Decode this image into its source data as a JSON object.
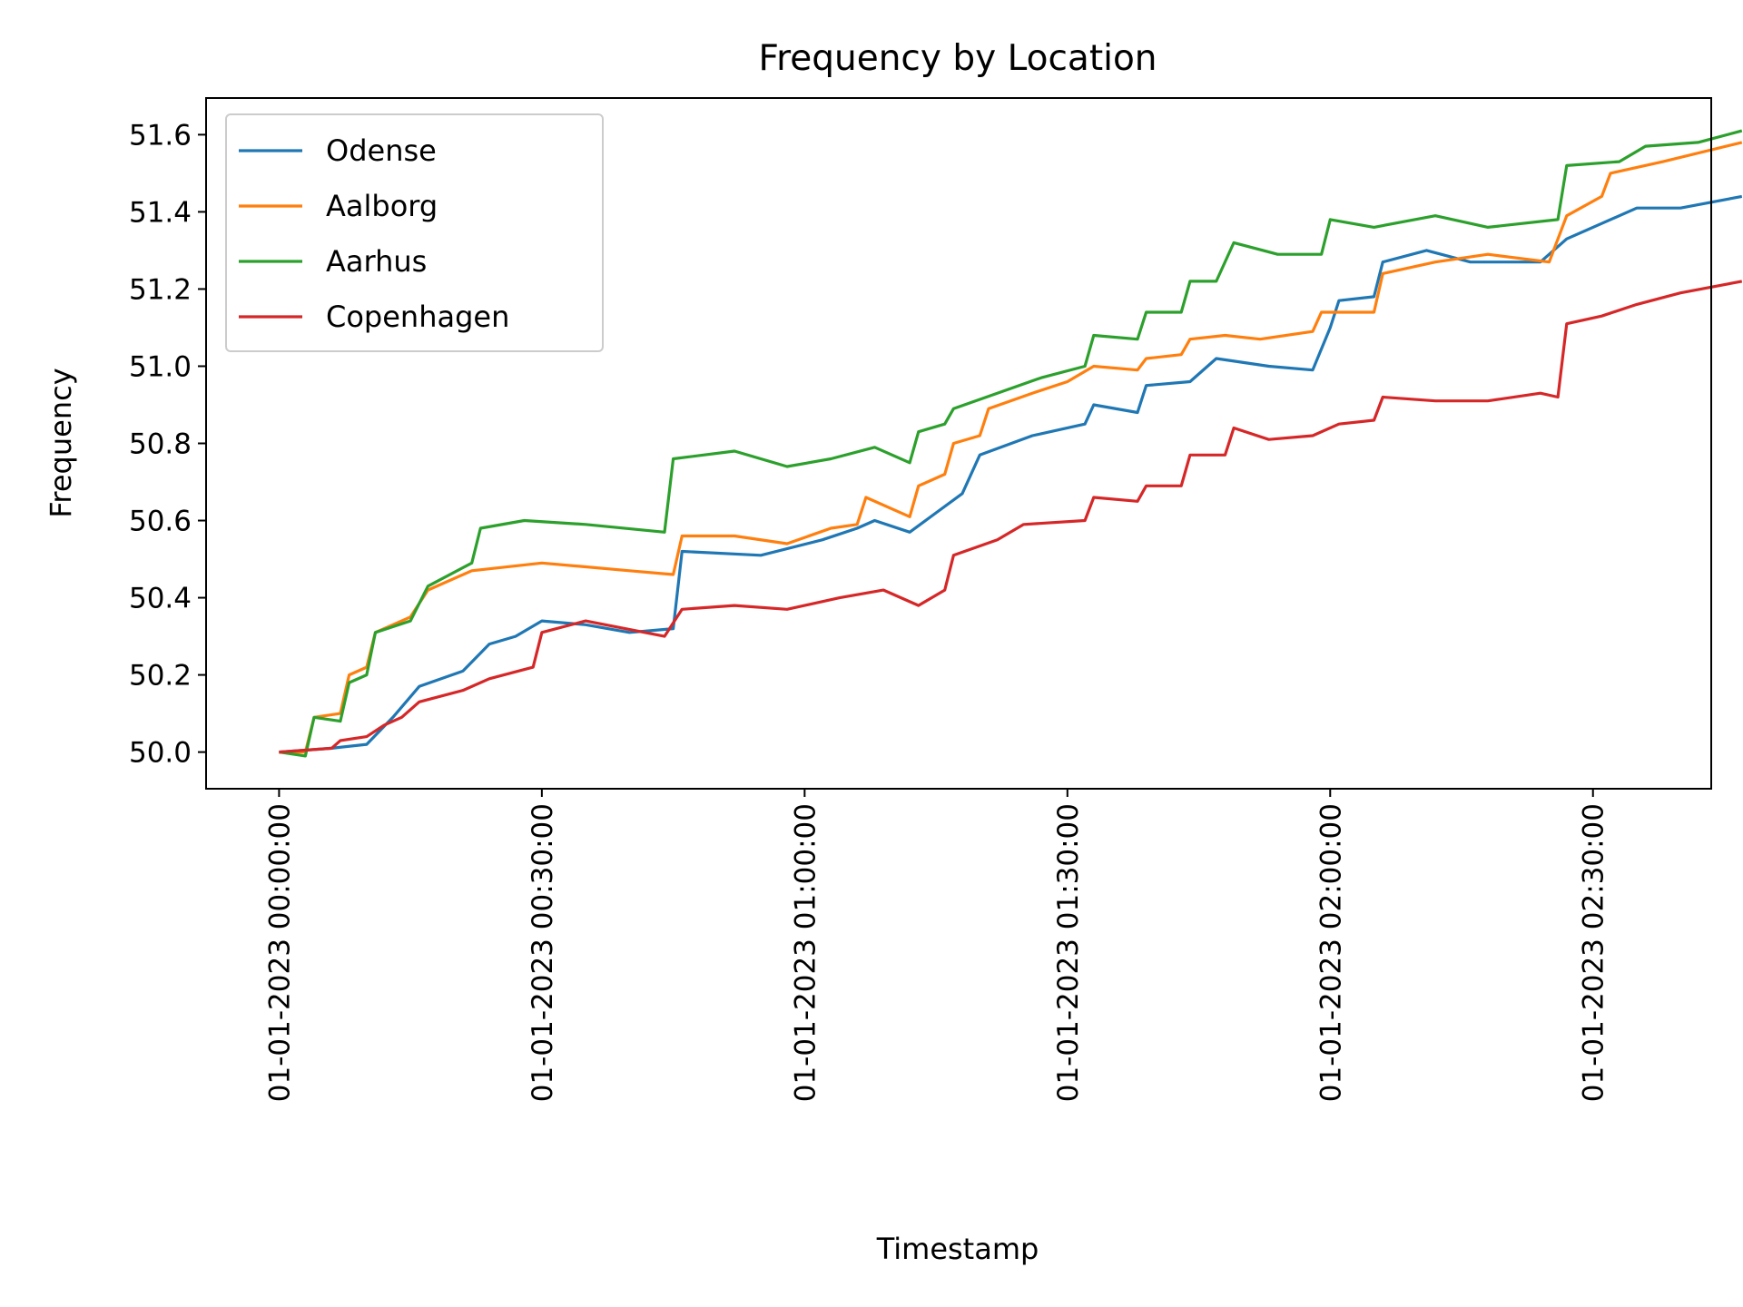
{
  "chart_data": {
    "type": "line",
    "title": "Frequency by Location",
    "xlabel": "Timestamp",
    "ylabel": "Frequency",
    "x_ticks": [
      "01-01-2023 00:00:00",
      "01-01-2023 00:30:00",
      "01-01-2023 01:00:00",
      "01-01-2023 01:30:00",
      "01-01-2023 02:00:00",
      "01-01-2023 02:30:00"
    ],
    "y_ticks": [
      "50.0",
      "50.2",
      "50.4",
      "50.6",
      "50.8",
      "51.0",
      "51.2",
      "51.4",
      "51.6"
    ],
    "xlim": [
      "01-01-2023 23:51:40",
      "01-01-2023 02:43:30"
    ],
    "ylim": [
      49.905,
      51.695
    ],
    "grid": false,
    "legend_position": "upper left",
    "series": [
      {
        "name": "Odense",
        "color": "#1f77b4",
        "points": [
          [
            "01-01-2023 00:00:00",
            50.0
          ],
          [
            "01-01-2023 00:06:00",
            50.01
          ],
          [
            "01-01-2023 00:10:00",
            50.02
          ],
          [
            "01-01-2023 00:13:00",
            50.09
          ],
          [
            "01-01-2023 00:16:00",
            50.17
          ],
          [
            "01-01-2023 00:21:00",
            50.21
          ],
          [
            "01-01-2023 00:24:00",
            50.28
          ],
          [
            "01-01-2023 00:27:00",
            50.3
          ],
          [
            "01-01-2023 00:30:00",
            50.34
          ],
          [
            "01-01-2023 00:35:00",
            50.33
          ],
          [
            "01-01-2023 00:40:00",
            50.31
          ],
          [
            "01-01-2023 00:45:00",
            50.32
          ],
          [
            "01-01-2023 00:46:00",
            50.52
          ],
          [
            "01-01-2023 00:55:00",
            50.51
          ],
          [
            "01-01-2023 01:02:00",
            50.55
          ],
          [
            "01-01-2023 01:06:00",
            50.58
          ],
          [
            "01-01-2023 01:08:00",
            50.6
          ],
          [
            "01-01-2023 01:12:00",
            50.57
          ],
          [
            "01-01-2023 01:15:00",
            50.62
          ],
          [
            "01-01-2023 01:18:00",
            50.67
          ],
          [
            "01-01-2023 01:20:00",
            50.77
          ],
          [
            "01-01-2023 01:26:00",
            50.82
          ],
          [
            "01-01-2023 01:32:00",
            50.85
          ],
          [
            "01-01-2023 01:33:00",
            50.9
          ],
          [
            "01-01-2023 01:38:00",
            50.88
          ],
          [
            "01-01-2023 01:39:00",
            50.95
          ],
          [
            "01-01-2023 01:44:00",
            50.96
          ],
          [
            "01-01-2023 01:47:00",
            51.02
          ],
          [
            "01-01-2023 01:53:00",
            51.0
          ],
          [
            "01-01-2023 01:58:00",
            50.99
          ],
          [
            "01-01-2023 02:00:00",
            51.1
          ],
          [
            "01-01-2023 02:01:00",
            51.17
          ],
          [
            "01-01-2023 02:05:00",
            51.18
          ],
          [
            "01-01-2023 02:06:00",
            51.27
          ],
          [
            "01-01-2023 02:11:00",
            51.3
          ],
          [
            "01-01-2023 02:16:00",
            51.27
          ],
          [
            "01-01-2023 02:24:00",
            51.27
          ],
          [
            "01-01-2023 02:27:00",
            51.33
          ],
          [
            "01-01-2023 02:31:00",
            51.37
          ],
          [
            "01-01-2023 02:35:00",
            51.41
          ],
          [
            "01-01-2023 02:40:00",
            51.41
          ],
          [
            "01-01-2023 02:47:00",
            51.44
          ]
        ]
      },
      {
        "name": "Aalborg",
        "color": "#ff7f0e",
        "points": [
          [
            "01-01-2023 00:00:00",
            50.0
          ],
          [
            "01-01-2023 00:03:00",
            50.0
          ],
          [
            "01-01-2023 00:04:00",
            50.09
          ],
          [
            "01-01-2023 00:07:00",
            50.1
          ],
          [
            "01-01-2023 00:08:00",
            50.2
          ],
          [
            "01-01-2023 00:10:00",
            50.22
          ],
          [
            "01-01-2023 00:11:00",
            50.31
          ],
          [
            "01-01-2023 00:15:00",
            50.35
          ],
          [
            "01-01-2023 00:17:00",
            50.42
          ],
          [
            "01-01-2023 00:22:00",
            50.47
          ],
          [
            "01-01-2023 00:30:00",
            50.49
          ],
          [
            "01-01-2023 00:35:00",
            50.48
          ],
          [
            "01-01-2023 00:40:00",
            50.47
          ],
          [
            "01-01-2023 00:45:00",
            50.46
          ],
          [
            "01-01-2023 00:46:00",
            50.56
          ],
          [
            "01-01-2023 00:52:00",
            50.56
          ],
          [
            "01-01-2023 00:58:00",
            50.54
          ],
          [
            "01-01-2023 01:03:00",
            50.58
          ],
          [
            "01-01-2023 01:06:00",
            50.59
          ],
          [
            "01-01-2023 01:07:00",
            50.66
          ],
          [
            "01-01-2023 01:10:00",
            50.63
          ],
          [
            "01-01-2023 01:12:00",
            50.61
          ],
          [
            "01-01-2023 01:13:00",
            50.69
          ],
          [
            "01-01-2023 01:16:00",
            50.72
          ],
          [
            "01-01-2023 01:17:00",
            50.8
          ],
          [
            "01-01-2023 01:20:00",
            50.82
          ],
          [
            "01-01-2023 01:21:00",
            50.89
          ],
          [
            "01-01-2023 01:26:00",
            50.93
          ],
          [
            "01-01-2023 01:30:00",
            50.96
          ],
          [
            "01-01-2023 01:33:00",
            51.0
          ],
          [
            "01-01-2023 01:38:00",
            50.99
          ],
          [
            "01-01-2023 01:39:00",
            51.02
          ],
          [
            "01-01-2023 01:43:00",
            51.03
          ],
          [
            "01-01-2023 01:44:00",
            51.07
          ],
          [
            "01-01-2023 01:48:00",
            51.08
          ],
          [
            "01-01-2023 01:52:00",
            51.07
          ],
          [
            "01-01-2023 01:58:00",
            51.09
          ],
          [
            "01-01-2023 01:59:00",
            51.14
          ],
          [
            "01-01-2023 02:05:00",
            51.14
          ],
          [
            "01-01-2023 02:06:00",
            51.24
          ],
          [
            "01-01-2023 02:12:00",
            51.27
          ],
          [
            "01-01-2023 02:18:00",
            51.29
          ],
          [
            "01-01-2023 02:25:00",
            51.27
          ],
          [
            "01-01-2023 02:27:00",
            51.39
          ],
          [
            "01-01-2023 02:31:00",
            51.44
          ],
          [
            "01-01-2023 02:32:00",
            51.5
          ],
          [
            "01-01-2023 02:38:00",
            51.53
          ],
          [
            "01-01-2023 02:47:00",
            51.58
          ]
        ]
      },
      {
        "name": "Aarhus",
        "color": "#2ca02c",
        "points": [
          [
            "01-01-2023 00:00:00",
            50.0
          ],
          [
            "01-01-2023 00:03:00",
            49.99
          ],
          [
            "01-01-2023 00:04:00",
            50.09
          ],
          [
            "01-01-2023 00:07:00",
            50.08
          ],
          [
            "01-01-2023 00:08:00",
            50.18
          ],
          [
            "01-01-2023 00:10:00",
            50.2
          ],
          [
            "01-01-2023 00:11:00",
            50.31
          ],
          [
            "01-01-2023 00:15:00",
            50.34
          ],
          [
            "01-01-2023 00:17:00",
            50.43
          ],
          [
            "01-01-2023 00:22:00",
            50.49
          ],
          [
            "01-01-2023 00:23:00",
            50.58
          ],
          [
            "01-01-2023 00:28:00",
            50.6
          ],
          [
            "01-01-2023 00:35:00",
            50.59
          ],
          [
            "01-01-2023 00:44:00",
            50.57
          ],
          [
            "01-01-2023 00:45:00",
            50.76
          ],
          [
            "01-01-2023 00:52:00",
            50.78
          ],
          [
            "01-01-2023 00:58:00",
            50.74
          ],
          [
            "01-01-2023 01:03:00",
            50.76
          ],
          [
            "01-01-2023 01:08:00",
            50.79
          ],
          [
            "01-01-2023 01:12:00",
            50.75
          ],
          [
            "01-01-2023 01:13:00",
            50.83
          ],
          [
            "01-01-2023 01:16:00",
            50.85
          ],
          [
            "01-01-2023 01:17:00",
            50.89
          ],
          [
            "01-01-2023 01:22:00",
            50.93
          ],
          [
            "01-01-2023 01:27:00",
            50.97
          ],
          [
            "01-01-2023 01:32:00",
            51.0
          ],
          [
            "01-01-2023 01:33:00",
            51.08
          ],
          [
            "01-01-2023 01:38:00",
            51.07
          ],
          [
            "01-01-2023 01:39:00",
            51.14
          ],
          [
            "01-01-2023 01:43:00",
            51.14
          ],
          [
            "01-01-2023 01:44:00",
            51.22
          ],
          [
            "01-01-2023 01:47:00",
            51.22
          ],
          [
            "01-01-2023 01:49:00",
            51.32
          ],
          [
            "01-01-2023 01:54:00",
            51.29
          ],
          [
            "01-01-2023 01:59:00",
            51.29
          ],
          [
            "01-01-2023 02:00:00",
            51.38
          ],
          [
            "01-01-2023 02:05:00",
            51.36
          ],
          [
            "01-01-2023 02:12:00",
            51.39
          ],
          [
            "01-01-2023 02:18:00",
            51.36
          ],
          [
            "01-01-2023 02:26:00",
            51.38
          ],
          [
            "01-01-2023 02:27:00",
            51.52
          ],
          [
            "01-01-2023 02:33:00",
            51.53
          ],
          [
            "01-01-2023 02:36:00",
            51.57
          ],
          [
            "01-01-2023 02:42:00",
            51.58
          ],
          [
            "01-01-2023 02:47:00",
            51.61
          ]
        ]
      },
      {
        "name": "Copenhagen",
        "color": "#d62728",
        "points": [
          [
            "01-01-2023 00:00:00",
            50.0
          ],
          [
            "01-01-2023 00:06:00",
            50.01
          ],
          [
            "01-01-2023 00:07:00",
            50.03
          ],
          [
            "01-01-2023 00:10:00",
            50.04
          ],
          [
            "01-01-2023 00:12:00",
            50.07
          ],
          [
            "01-01-2023 00:14:00",
            50.09
          ],
          [
            "01-01-2023 00:16:00",
            50.13
          ],
          [
            "01-01-2023 00:21:00",
            50.16
          ],
          [
            "01-01-2023 00:24:00",
            50.19
          ],
          [
            "01-01-2023 00:29:00",
            50.22
          ],
          [
            "01-01-2023 00:30:00",
            50.31
          ],
          [
            "01-01-2023 00:35:00",
            50.34
          ],
          [
            "01-01-2023 00:44:00",
            50.3
          ],
          [
            "01-01-2023 00:46:00",
            50.37
          ],
          [
            "01-01-2023 00:52:00",
            50.38
          ],
          [
            "01-01-2023 00:58:00",
            50.37
          ],
          [
            "01-01-2023 01:04:00",
            50.4
          ],
          [
            "01-01-2023 01:09:00",
            50.42
          ],
          [
            "01-01-2023 01:13:00",
            50.38
          ],
          [
            "01-01-2023 01:16:00",
            50.42
          ],
          [
            "01-01-2023 01:17:00",
            50.51
          ],
          [
            "01-01-2023 01:22:00",
            50.55
          ],
          [
            "01-01-2023 01:25:00",
            50.59
          ],
          [
            "01-01-2023 01:32:00",
            50.6
          ],
          [
            "01-01-2023 01:33:00",
            50.66
          ],
          [
            "01-01-2023 01:38:00",
            50.65
          ],
          [
            "01-01-2023 01:39:00",
            50.69
          ],
          [
            "01-01-2023 01:43:00",
            50.69
          ],
          [
            "01-01-2023 01:44:00",
            50.77
          ],
          [
            "01-01-2023 01:48:00",
            50.77
          ],
          [
            "01-01-2023 01:49:00",
            50.84
          ],
          [
            "01-01-2023 01:53:00",
            50.81
          ],
          [
            "01-01-2023 01:58:00",
            50.82
          ],
          [
            "01-01-2023 02:01:00",
            50.85
          ],
          [
            "01-01-2023 02:05:00",
            50.86
          ],
          [
            "01-01-2023 02:06:00",
            50.92
          ],
          [
            "01-01-2023 02:12:00",
            50.91
          ],
          [
            "01-01-2023 02:18:00",
            50.91
          ],
          [
            "01-01-2023 02:24:00",
            50.93
          ],
          [
            "01-01-2023 02:26:00",
            50.92
          ],
          [
            "01-01-2023 02:27:00",
            51.11
          ],
          [
            "01-01-2023 02:31:00",
            51.13
          ],
          [
            "01-01-2023 02:35:00",
            51.16
          ],
          [
            "01-01-2023 02:40:00",
            51.19
          ],
          [
            "01-01-2023 02:47:00",
            51.22
          ]
        ]
      }
    ]
  }
}
